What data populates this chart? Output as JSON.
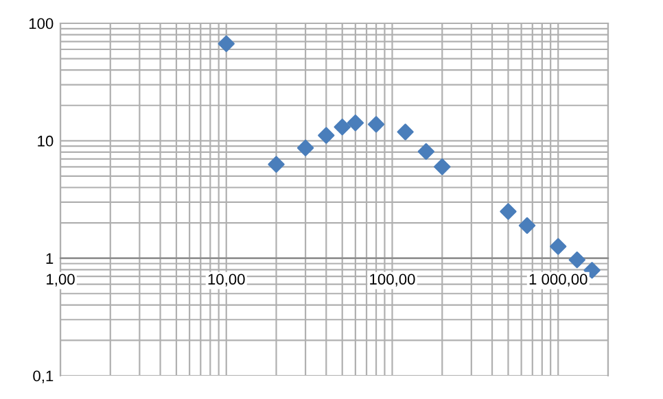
{
  "chart_data": {
    "type": "scatter",
    "log": "xy",
    "x": [
      10,
      20,
      30,
      40,
      50,
      60,
      80,
      120,
      160,
      200,
      500,
      650,
      1000,
      1300,
      1600
    ],
    "series": [
      {
        "color": "#4a7ebb",
        "values": [
          67,
          6.3,
          8.7,
          11.1,
          13.1,
          14.2,
          13.8,
          11.9,
          8.1,
          6.0,
          2.5,
          1.9,
          1.26,
          0.97,
          0.79
        ]
      }
    ],
    "xlim": [
      1,
      2000
    ],
    "ylim": [
      0.1,
      100
    ],
    "xticks": [
      {
        "value": 1,
        "label": "1,00"
      },
      {
        "value": 10,
        "label": "10,00"
      },
      {
        "value": 100,
        "label": "100,00"
      },
      {
        "value": 1000,
        "label": "1 000,00"
      }
    ],
    "yticks": [
      {
        "value": 0.1,
        "label": "0,1"
      },
      1,
      10,
      100
    ],
    "grid": true,
    "marker": "diamond"
  }
}
